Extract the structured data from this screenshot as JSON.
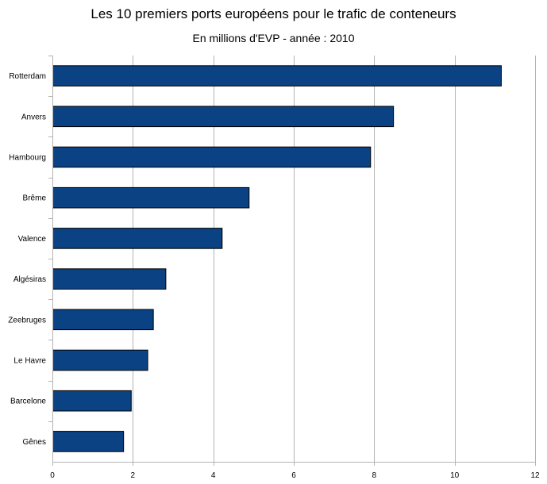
{
  "chart_data": {
    "type": "bar",
    "orientation": "horizontal",
    "title": "Les 10 premiers ports européens pour le trafic de conteneurs",
    "subtitle": "En millions d'EVP - année : 2010",
    "xlabel": "",
    "ylabel": "",
    "categories": [
      "Rotterdam",
      "Anvers",
      "Hambourg",
      "Brême",
      "Valence",
      "Algésiras",
      "Zeebruges",
      "Le Havre",
      "Barcelone",
      "Gênes"
    ],
    "values": [
      11.15,
      8.47,
      7.9,
      4.88,
      4.21,
      2.81,
      2.5,
      2.36,
      1.95,
      1.76
    ],
    "xlim": [
      0,
      12
    ],
    "xticks": [
      "0",
      "2",
      "4",
      "6",
      "8",
      "10",
      "12"
    ],
    "grid": true,
    "legend": "none",
    "colors": {
      "bar": "#0a4283",
      "bar_edge": "#000000",
      "grid": "#b3b3b3",
      "axis": "#b3b3b3"
    }
  }
}
